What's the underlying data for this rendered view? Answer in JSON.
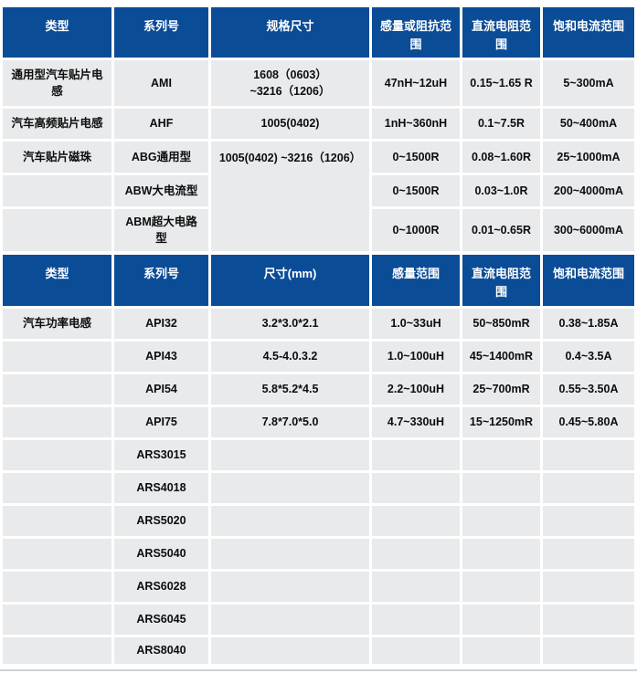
{
  "colors": {
    "header_bg": "#0b4c97",
    "header_text": "#ffffff",
    "cell_bg": "#e8eaec",
    "cell_text": "#0d0d0d",
    "divider": "#ccd2d9"
  },
  "table1": {
    "headers": [
      "类型",
      "系列号",
      "规格尺寸",
      "感量或阻抗范\n围",
      "直流电阻范\n围",
      "饱和电流范围"
    ],
    "rows": [
      [
        "通用型汽车贴片电感",
        "AMI",
        "1608（0603）\n~3216（1206）",
        "47nH~12uH",
        "0.15~1.65 R",
        "5~300mA"
      ],
      [
        "汽车高频贴片电感",
        "AHF",
        "1005(0402)",
        "1nH~360nH",
        "0.1~7.5R",
        "50~400mA"
      ],
      [
        "汽车贴片磁珠",
        "ABG通用型",
        "1005(0402) ~3216（1206）",
        "0~1500R",
        "0.08~1.60R",
        "25~1000mA"
      ],
      [
        "",
        "ABW大电流型",
        "",
        "0~1500R",
        "0.03~1.0R",
        "200~4000mA"
      ],
      [
        "",
        "ABM超大电路\n型",
        "",
        "0~1000R",
        "0.01~0.65R",
        "300~6000mA"
      ]
    ]
  },
  "table2": {
    "headers": [
      "类型",
      "系列号",
      "尺寸(mm)",
      "感量范围",
      "直流电阻范\n围",
      "饱和电流范围"
    ],
    "rows": [
      [
        "汽车功率电感",
        "API32",
        "3.2*3.0*2.1",
        "1.0~33uH",
        "50~850mR",
        "0.38~1.85A"
      ],
      [
        "",
        "API43",
        "4.5-4.0.3.2",
        "1.0~100uH",
        "45~1400mR",
        "0.4~3.5A"
      ],
      [
        "",
        "API54",
        "5.8*5.2*4.5",
        "2.2~100uH",
        "25~700mR",
        "0.55~3.50A"
      ],
      [
        "",
        "API75",
        "7.8*7.0*5.0",
        "4.7~330uH",
        "15~1250mR",
        "0.45~5.80A"
      ],
      [
        "",
        "ARS3015",
        "",
        "",
        "",
        ""
      ],
      [
        "",
        "ARS4018",
        "",
        "",
        "",
        ""
      ],
      [
        "",
        "ARS5020",
        "",
        "",
        "",
        ""
      ],
      [
        "",
        "ARS5040",
        "",
        "",
        "",
        ""
      ],
      [
        "",
        "ARS6028",
        "",
        "",
        "",
        ""
      ],
      [
        "",
        "ARS6045",
        "",
        "",
        "",
        ""
      ],
      [
        "",
        "ARS8040",
        "",
        "",
        "",
        ""
      ]
    ]
  }
}
